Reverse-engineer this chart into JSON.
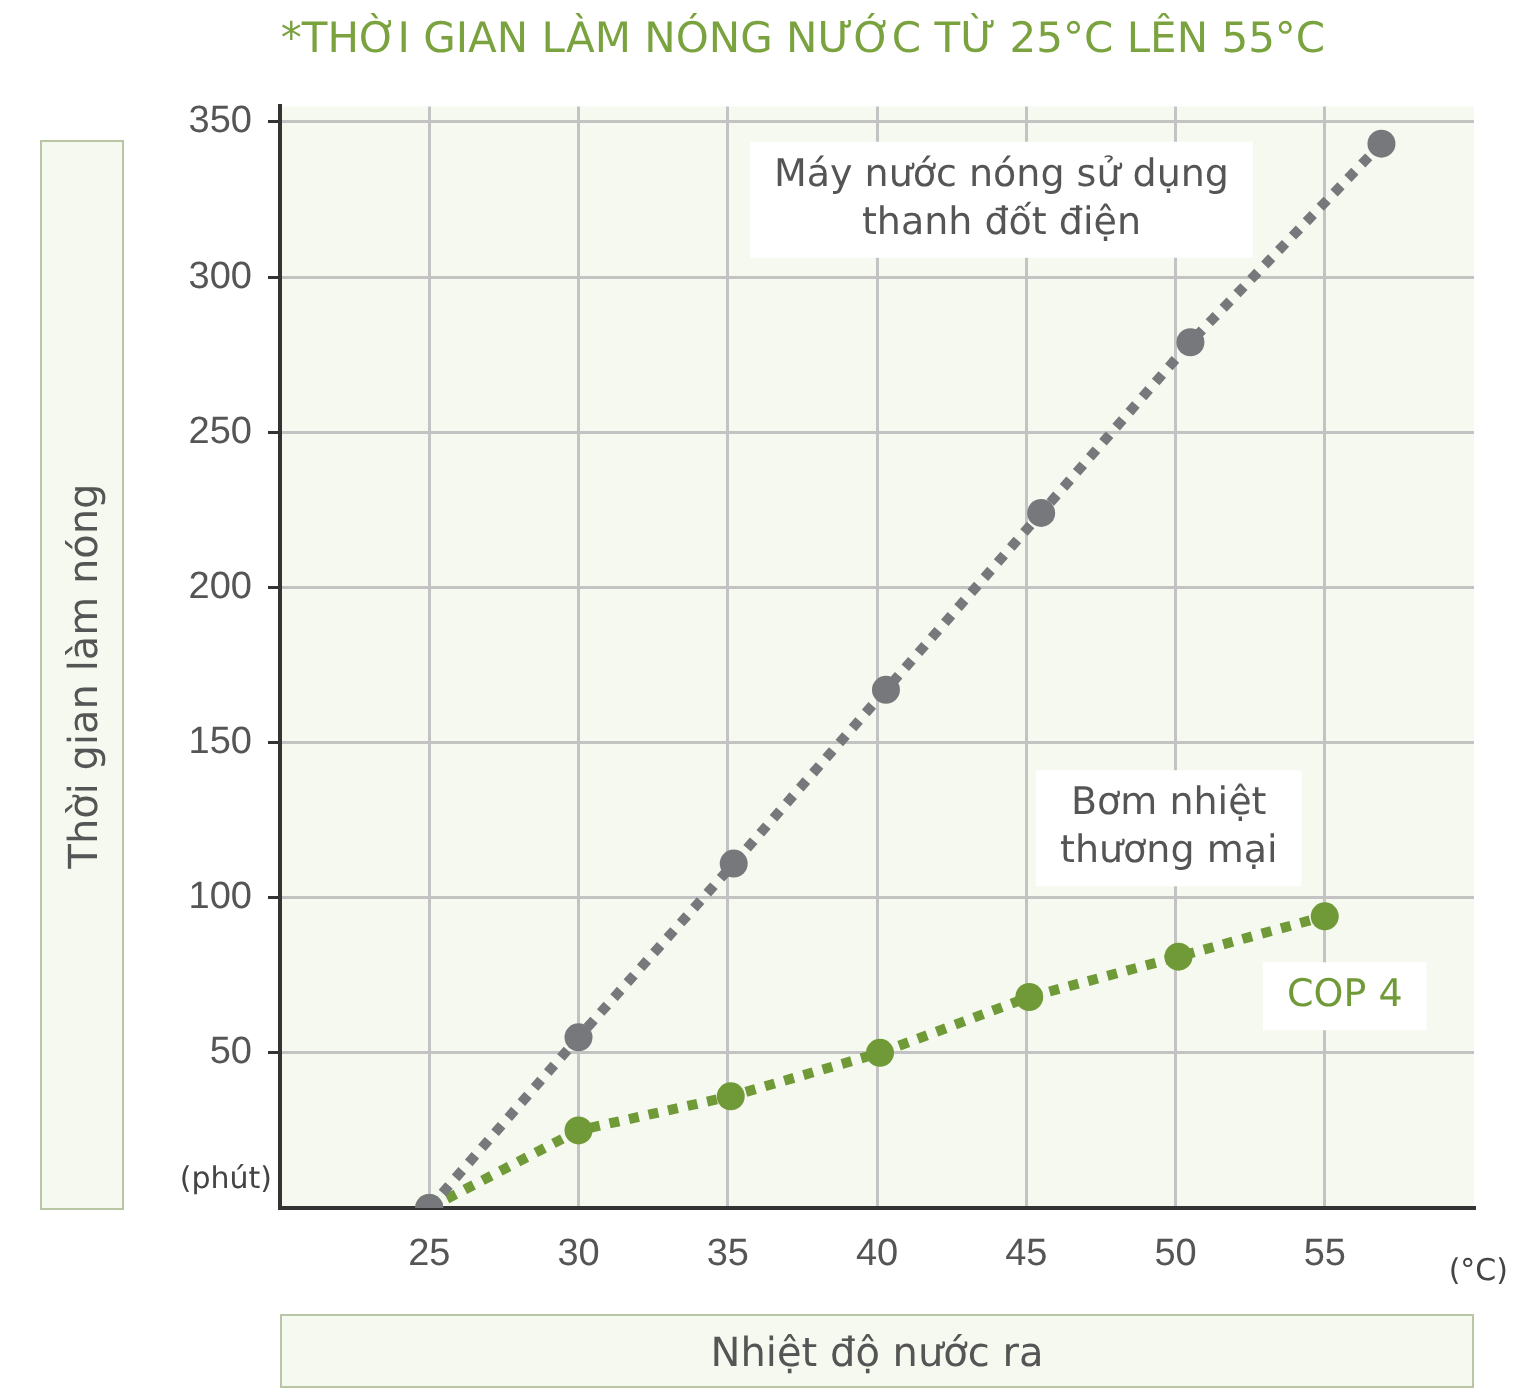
{
  "chart_data": {
    "type": "line",
    "title": "*THỜI GIAN LÀM NÓNG NƯỚC TỪ 25°C LÊN 55°C",
    "xlabel": "Nhiệt độ nước ra",
    "ylabel": "Thời gian làm nóng",
    "series": [
      {
        "name": "Máy nước nóng sử dụng thanh đốt điện",
        "color": "#77787b",
        "x": [
          25,
          30,
          35.2,
          40.3,
          45.5,
          50.5,
          56.9
        ],
        "values": [
          0,
          55,
          111,
          167,
          224,
          279,
          343
        ]
      },
      {
        "name": "Bơm nhiệt thương mại",
        "color": "#6f9a37",
        "x": [
          25,
          30,
          35.1,
          40.1,
          45.1,
          50.1,
          55
        ],
        "values": [
          0,
          25,
          36,
          50,
          68,
          81,
          94
        ]
      }
    ],
    "annotations": [
      "(phút)",
      "(°C)",
      {
        "text": "COP 4",
        "x": 55,
        "y": 94
      }
    ],
    "xlim": [
      20,
      60
    ],
    "ylim": [
      0,
      355
    ],
    "xticks": [
      25,
      30,
      35,
      40,
      45,
      50,
      55
    ],
    "yticks": [
      50,
      100,
      150,
      200,
      250,
      300,
      350
    ],
    "grid": true,
    "legend": false,
    "marker": "circle",
    "line_style": "dotted"
  }
}
